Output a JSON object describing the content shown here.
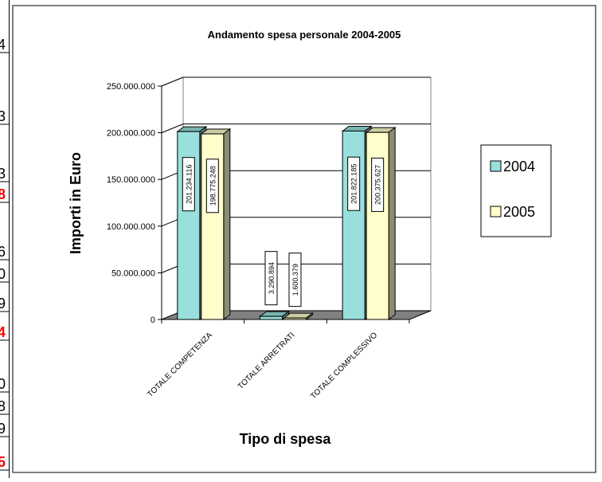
{
  "sheet": {
    "row_fragments": [
      "4",
      "3",
      "3",
      "8",
      "6",
      "0",
      "9",
      "4",
      "0",
      "8",
      "9",
      "5"
    ]
  },
  "colors": {
    "series_2004": "#99E0DD",
    "series_2005": "#FFFFCC",
    "floor": "#808080",
    "wall": "#ffffff",
    "highlight": "#FF0000"
  },
  "chart_data": {
    "type": "bar",
    "title": "Andamento spesa personale 2004-2005",
    "xlabel": "Tipo di spesa",
    "ylabel": "Importi in Euro",
    "categories": [
      "TOTALE COMPETENZA",
      "TOTALE ARRETRATI",
      "TOTALE COMPLESSIVO"
    ],
    "series": [
      {
        "name": "2004",
        "values": [
          201234116,
          3290894,
          201822185
        ],
        "labels": [
          "201.234.116",
          "3.290.894",
          "201.822.185"
        ]
      },
      {
        "name": "2005",
        "values": [
          198775248,
          1600379,
          200375627
        ],
        "labels": [
          "198.775.248",
          "1.600.379",
          "200.375.627"
        ]
      }
    ],
    "ylim": [
      0,
      250000000
    ],
    "yticks": [
      "0",
      "50.000.000",
      "100.000.000",
      "150.000.000",
      "200.000.000",
      "250.000.000"
    ],
    "grid": true,
    "legend_position": "right"
  }
}
